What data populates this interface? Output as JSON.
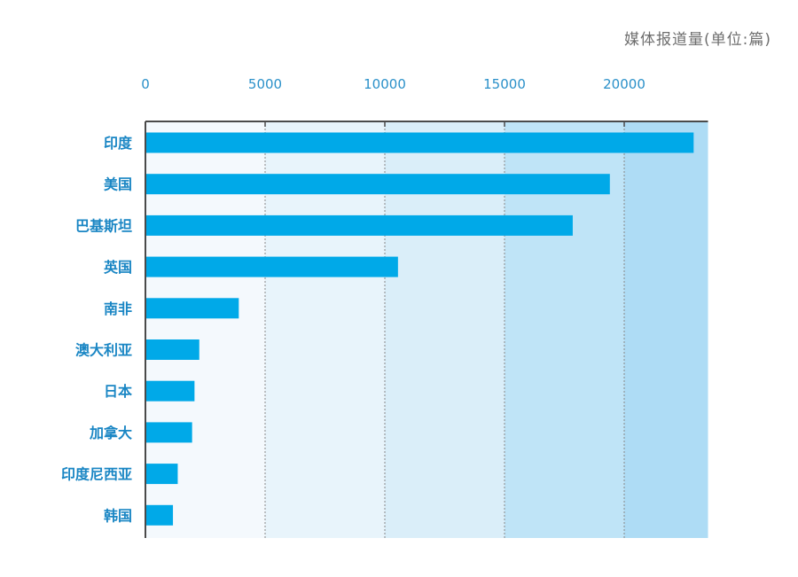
{
  "chart_data": {
    "type": "bar",
    "orientation": "horizontal",
    "unit_label": "媒体报道量(单位:篇)",
    "categories": [
      "印度",
      "美国",
      "巴基斯坦",
      "英国",
      "南非",
      "澳大利亚",
      "日本",
      "加拿大",
      "印度尼西亚",
      "韩国"
    ],
    "values": [
      22900,
      19400,
      17850,
      10550,
      3900,
      2250,
      2050,
      1950,
      1350,
      1150
    ],
    "x_ticks": [
      "0",
      "5000",
      "10000",
      "15000",
      "20000"
    ],
    "xlim": [
      0,
      23500
    ],
    "grid": true,
    "colors": {
      "bar": "#00a9e8",
      "axis": "#4a4a4a",
      "grid": "#888888",
      "tick_text": "#2a90c9",
      "category_text": "#1a86c4",
      "band_1": "#f4f9fd",
      "band_2": "#e8f4fb",
      "band_3": "#daeef9",
      "band_4": "#bfe4f7",
      "band_5": "#aedcf5"
    }
  }
}
